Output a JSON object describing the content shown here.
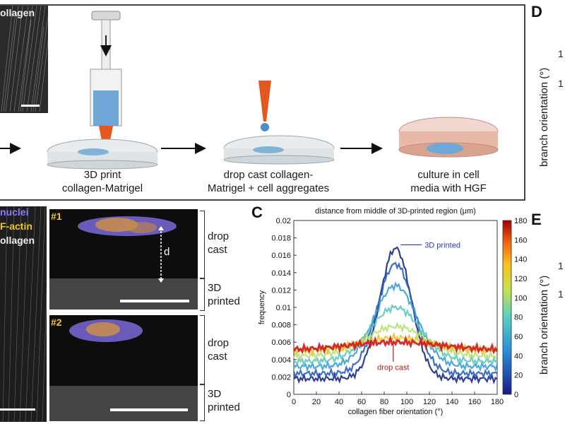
{
  "panel_d": {
    "letter": "D",
    "ylabel": "branch orientation (°)",
    "ticks": [
      "1",
      "1"
    ]
  },
  "panel_e": {
    "letter": "E",
    "ylabel": "branch orientation (°)",
    "ticks": [
      "1",
      "1"
    ]
  },
  "panel_c": {
    "letter": "C"
  },
  "panel_a": {
    "collagen_label": "ollagen"
  },
  "schematic": {
    "step1_caption": "3D print\ncollagen-Matrigel",
    "step2_caption": "drop cast collagen-\nMatrigel + cell aggregates",
    "step3_caption": "culture in cell\nmedia with HGF"
  },
  "panel_b": {
    "legend": {
      "nuclei": "nuclei",
      "factin": "F-actin",
      "collagen": "ollagen"
    },
    "img1_label": "#1",
    "img2_label": "#2",
    "d_label": "d",
    "drop_cast_label": "drop\ncast",
    "printed_label": "3D\nprinted",
    "drop_cast_label2": "drop\ncast",
    "printed_label2": "3D\nprinted"
  },
  "chart_data": {
    "type": "line",
    "title": "distance from middle of 3D-printed region (μm)",
    "xlabel": "collagen fiber orientation (°)",
    "ylabel": "frequency",
    "xlim": [
      0,
      180
    ],
    "ylim": [
      0,
      0.02
    ],
    "xticks": [
      0,
      20,
      40,
      60,
      80,
      100,
      120,
      140,
      160,
      180
    ],
    "yticks": [
      0,
      0.002,
      0.004,
      0.006,
      0.008,
      0.01,
      0.012,
      0.014,
      0.016,
      0.018,
      0.02
    ],
    "colorbar_ticks": [
      0,
      20,
      40,
      60,
      80,
      100,
      120,
      140,
      160,
      180
    ],
    "annotations": [
      {
        "text": "3D printed",
        "x": 92,
        "y": 0.0172
      },
      {
        "text": "drop cast",
        "x": 88,
        "y": 0.0062
      }
    ],
    "series": [
      {
        "distance": 0,
        "color": "#1a2a8c",
        "peak": 0.0168,
        "base": 0.0018,
        "width": 14
      },
      {
        "distance": 30,
        "color": "#2a5fbf",
        "peak": 0.015,
        "base": 0.0024,
        "width": 16
      },
      {
        "distance": 60,
        "color": "#3aa0d8",
        "peak": 0.0125,
        "base": 0.0032,
        "width": 19
      },
      {
        "distance": 90,
        "color": "#5cc8c0",
        "peak": 0.01,
        "base": 0.0038,
        "width": 22
      },
      {
        "distance": 120,
        "color": "#b8e070",
        "peak": 0.0078,
        "base": 0.0044,
        "width": 26
      },
      {
        "distance": 150,
        "color": "#f0c020",
        "peak": 0.0065,
        "base": 0.005,
        "width": 32
      },
      {
        "distance": 180,
        "color": "#d01818",
        "peak": 0.006,
        "base": 0.0051,
        "width": 40
      }
    ]
  }
}
